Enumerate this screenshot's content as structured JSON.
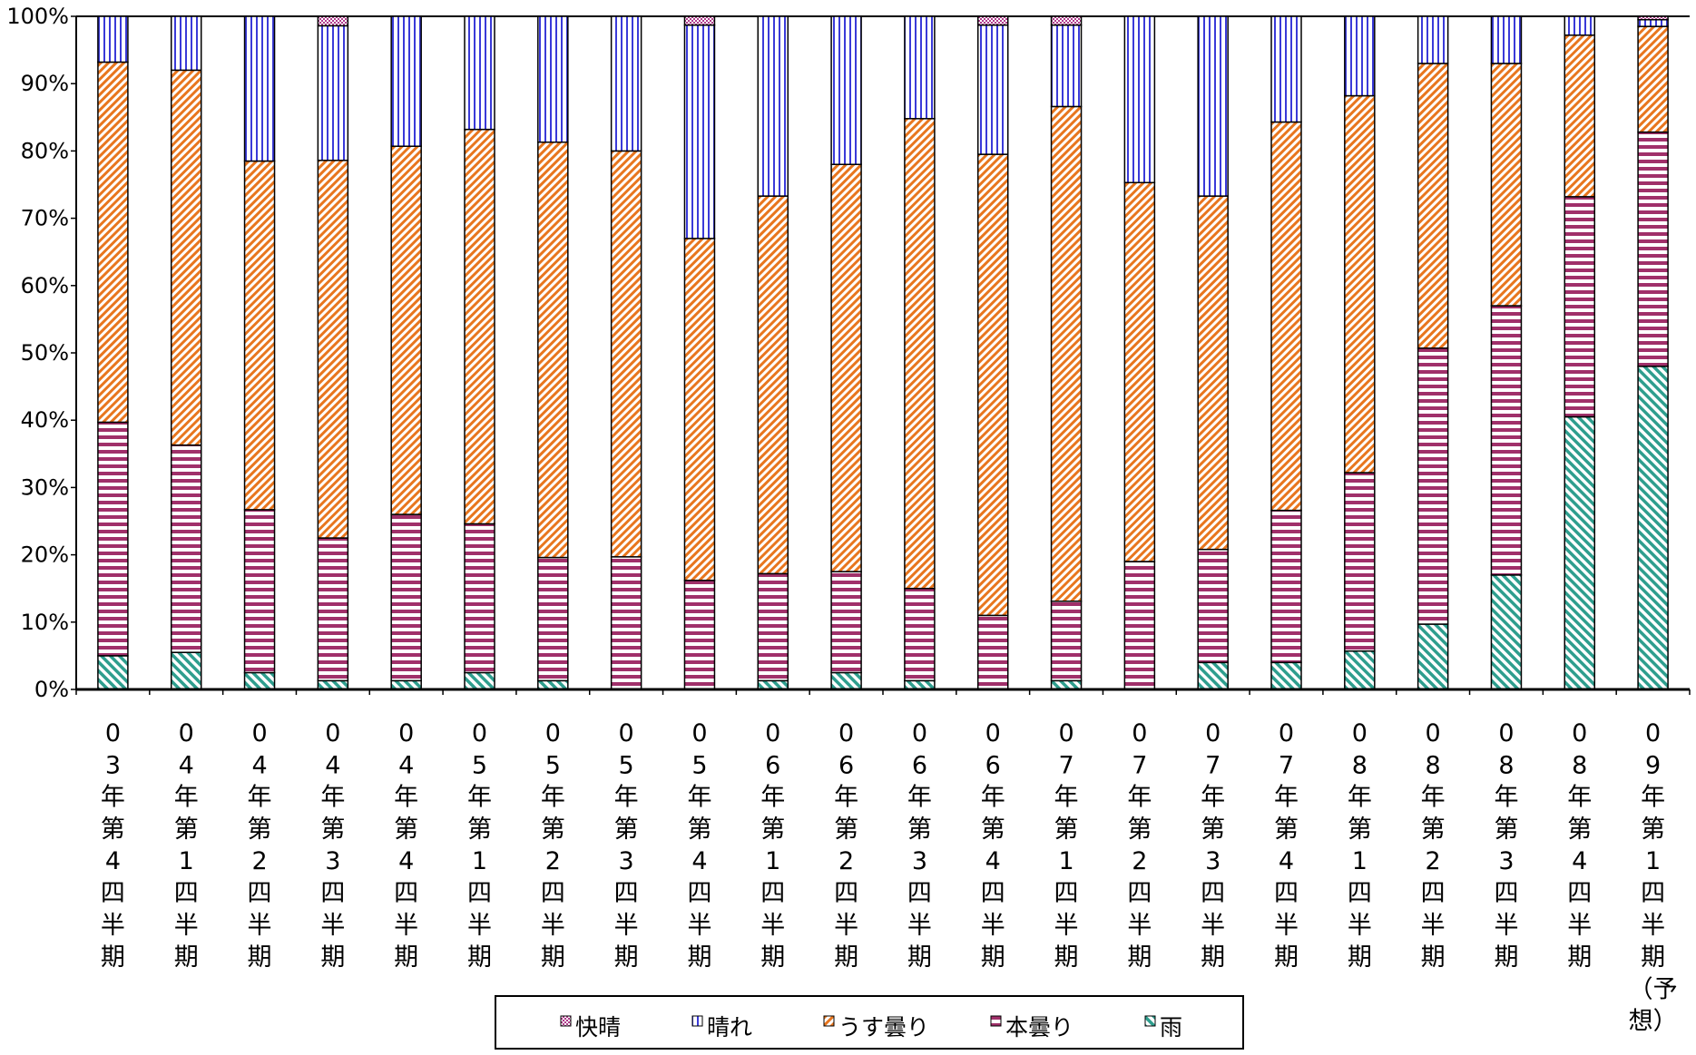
{
  "chart_data": {
    "type": "bar",
    "stacked": true,
    "percent": true,
    "title": "",
    "xlabel": "",
    "ylabel": "",
    "ylim": [
      0,
      100
    ],
    "yticks": [
      "0%",
      "10%",
      "20%",
      "30%",
      "40%",
      "50%",
      "60%",
      "70%",
      "80%",
      "90%",
      "100%"
    ],
    "grid": false,
    "legend_position": "bottom",
    "categories": [
      [
        "0",
        "3",
        "年",
        "第",
        "4",
        "四",
        "半",
        "期"
      ],
      [
        "0",
        "4",
        "年",
        "第",
        "1",
        "四",
        "半",
        "期"
      ],
      [
        "0",
        "4",
        "年",
        "第",
        "2",
        "四",
        "半",
        "期"
      ],
      [
        "0",
        "4",
        "年",
        "第",
        "3",
        "四",
        "半",
        "期"
      ],
      [
        "0",
        "4",
        "年",
        "第",
        "4",
        "四",
        "半",
        "期"
      ],
      [
        "0",
        "5",
        "年",
        "第",
        "1",
        "四",
        "半",
        "期"
      ],
      [
        "0",
        "5",
        "年",
        "第",
        "2",
        "四",
        "半",
        "期"
      ],
      [
        "0",
        "5",
        "年",
        "第",
        "3",
        "四",
        "半",
        "期"
      ],
      [
        "0",
        "5",
        "年",
        "第",
        "4",
        "四",
        "半",
        "期"
      ],
      [
        "0",
        "6",
        "年",
        "第",
        "1",
        "四",
        "半",
        "期"
      ],
      [
        "0",
        "6",
        "年",
        "第",
        "2",
        "四",
        "半",
        "期"
      ],
      [
        "0",
        "6",
        "年",
        "第",
        "3",
        "四",
        "半",
        "期"
      ],
      [
        "0",
        "6",
        "年",
        "第",
        "4",
        "四",
        "半",
        "期"
      ],
      [
        "0",
        "7",
        "年",
        "第",
        "1",
        "四",
        "半",
        "期"
      ],
      [
        "0",
        "7",
        "年",
        "第",
        "2",
        "四",
        "半",
        "期"
      ],
      [
        "0",
        "7",
        "年",
        "第",
        "3",
        "四",
        "半",
        "期"
      ],
      [
        "0",
        "7",
        "年",
        "第",
        "4",
        "四",
        "半",
        "期"
      ],
      [
        "0",
        "8",
        "年",
        "第",
        "1",
        "四",
        "半",
        "期"
      ],
      [
        "0",
        "8",
        "年",
        "第",
        "2",
        "四",
        "半",
        "期"
      ],
      [
        "0",
        "8",
        "年",
        "第",
        "3",
        "四",
        "半",
        "期"
      ],
      [
        "0",
        "8",
        "年",
        "第",
        "4",
        "四",
        "半",
        "期"
      ],
      [
        "0",
        "9",
        "年",
        "第",
        "1",
        "四",
        "半",
        "期",
        "（予",
        "想）"
      ]
    ],
    "series": [
      {
        "name": "雨",
        "color": "#2e9e8e",
        "pattern": "diagonal-back",
        "values": [
          5,
          5.5,
          2.5,
          1.3,
          1.3,
          2.5,
          1.3,
          0,
          0,
          1.3,
          2.5,
          1.3,
          0,
          1.3,
          0,
          4,
          4,
          5.7,
          9.7,
          17,
          40.5,
          48
        ]
      },
      {
        "name": "本曇り",
        "color": "#a0306a",
        "pattern": "horizontal",
        "values": [
          34.7,
          30.8,
          24.2,
          21.2,
          24.7,
          22.1,
          18.3,
          19.7,
          16.2,
          15.9,
          15,
          13.7,
          11,
          11.8,
          19,
          16.8,
          22.6,
          26.5,
          41,
          40,
          32.7,
          34.8
        ]
      },
      {
        "name": "うす曇り",
        "color": "#e8761e",
        "pattern": "diagonal-forward",
        "values": [
          53.5,
          55.7,
          51.8,
          56.1,
          54.7,
          58.6,
          61.7,
          60.3,
          50.8,
          56.1,
          60.5,
          69.8,
          68.5,
          73.5,
          56.3,
          52.5,
          57.7,
          56,
          42.3,
          36,
          24,
          15.7
        ]
      },
      {
        "name": "晴れ",
        "color": "#3a3ad8",
        "pattern": "vertical",
        "values": [
          6.8,
          8,
          21.5,
          20,
          19.3,
          16.8,
          18.7,
          20,
          31.7,
          26.7,
          22,
          15.2,
          19.2,
          12.1,
          24.7,
          26.7,
          15.7,
          11.8,
          7,
          7,
          2.8,
          1
        ]
      },
      {
        "name": "快晴",
        "color": "#b03c8c",
        "pattern": "checker",
        "values": [
          0,
          0,
          0,
          1.4,
          0,
          0,
          0,
          0,
          1.3,
          0,
          0,
          0,
          1.3,
          1.3,
          0,
          0,
          0,
          0,
          0,
          0,
          0,
          0.5
        ]
      }
    ]
  }
}
